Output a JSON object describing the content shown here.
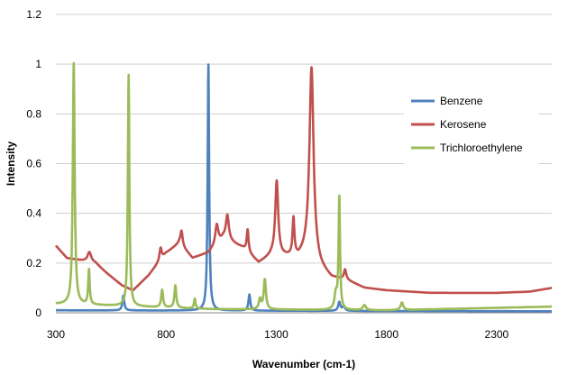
{
  "chart_data": {
    "type": "line",
    "xlabel": "Wavenumber (cm-1)",
    "ylabel": "Intensity",
    "xlim": [
      300,
      2550
    ],
    "ylim": [
      0,
      1.2
    ],
    "xticks": [
      300,
      800,
      1300,
      1800,
      2300
    ],
    "yticks": [
      0,
      0.2,
      0.4,
      0.6,
      0.8,
      1,
      1.2
    ],
    "ytick_labels": [
      "0",
      "0.2",
      "0.4",
      "0.6",
      "0.8",
      "1",
      "1.2"
    ],
    "grid": "horizontal",
    "legend": "right",
    "series": [
      {
        "name": "Benzene",
        "color": "#4f81bd",
        "baseline": [
          [
            300,
            0.01
          ],
          [
            2550,
            0.006
          ]
        ],
        "peaks": [
          {
            "x": 606,
            "h": 0.06,
            "w": 5
          },
          {
            "x": 992,
            "h": 0.99,
            "w": 4
          },
          {
            "x": 1178,
            "h": 0.065,
            "w": 5
          },
          {
            "x": 1586,
            "h": 0.035,
            "w": 6
          },
          {
            "x": 1606,
            "h": 0.02,
            "w": 6
          }
        ]
      },
      {
        "name": "Kerosene",
        "color": "#c0504d",
        "baseline": [
          [
            300,
            0.27
          ],
          [
            350,
            0.22
          ],
          [
            420,
            0.21
          ],
          [
            480,
            0.2
          ],
          [
            530,
            0.16
          ],
          [
            600,
            0.11
          ],
          [
            650,
            0.09
          ],
          [
            720,
            0.15
          ],
          [
            800,
            0.24
          ],
          [
            860,
            0.28
          ],
          [
            920,
            0.22
          ],
          [
            990,
            0.24
          ],
          [
            1060,
            0.3
          ],
          [
            1150,
            0.26
          ],
          [
            1220,
            0.2
          ],
          [
            1280,
            0.23
          ],
          [
            1400,
            0.22
          ],
          [
            1450,
            0.25
          ],
          [
            1500,
            0.18
          ],
          [
            1550,
            0.14
          ],
          [
            1620,
            0.13
          ],
          [
            1700,
            0.1
          ],
          [
            1800,
            0.09
          ],
          [
            2000,
            0.08
          ],
          [
            2300,
            0.08
          ],
          [
            2450,
            0.085
          ],
          [
            2550,
            0.1
          ]
        ],
        "peaks": [
          {
            "x": 452,
            "h": 0.04,
            "w": 10
          },
          {
            "x": 775,
            "h": 0.05,
            "w": 6
          },
          {
            "x": 870,
            "h": 0.06,
            "w": 6
          },
          {
            "x": 1030,
            "h": 0.08,
            "w": 8
          },
          {
            "x": 1078,
            "h": 0.1,
            "w": 8
          },
          {
            "x": 1170,
            "h": 0.09,
            "w": 5
          },
          {
            "x": 1302,
            "h": 0.3,
            "w": 8
          },
          {
            "x": 1378,
            "h": 0.15,
            "w": 5
          },
          {
            "x": 1460,
            "h": 0.75,
            "w": 11
          },
          {
            "x": 1612,
            "h": 0.04,
            "w": 6
          }
        ]
      },
      {
        "name": "Trichloroethylene",
        "color": "#9bbb59",
        "baseline": [
          [
            300,
            0.035
          ],
          [
            500,
            0.03
          ],
          [
            1000,
            0.015
          ],
          [
            1800,
            0.01
          ],
          [
            2550,
            0.025
          ]
        ],
        "peaks": [
          {
            "x": 381,
            "h": 0.97,
            "w": 5
          },
          {
            "x": 450,
            "h": 0.14,
            "w": 4
          },
          {
            "x": 630,
            "h": 0.93,
            "w": 4
          },
          {
            "x": 782,
            "h": 0.07,
            "w": 5
          },
          {
            "x": 842,
            "h": 0.09,
            "w": 5
          },
          {
            "x": 930,
            "h": 0.04,
            "w": 4
          },
          {
            "x": 1248,
            "h": 0.12,
            "w": 6
          },
          {
            "x": 1226,
            "h": 0.04,
            "w": 6
          },
          {
            "x": 1586,
            "h": 0.45,
            "w": 4
          },
          {
            "x": 1570,
            "h": 0.06,
            "w": 7
          },
          {
            "x": 1700,
            "h": 0.02,
            "w": 8
          },
          {
            "x": 1870,
            "h": 0.03,
            "w": 7
          }
        ]
      }
    ]
  }
}
